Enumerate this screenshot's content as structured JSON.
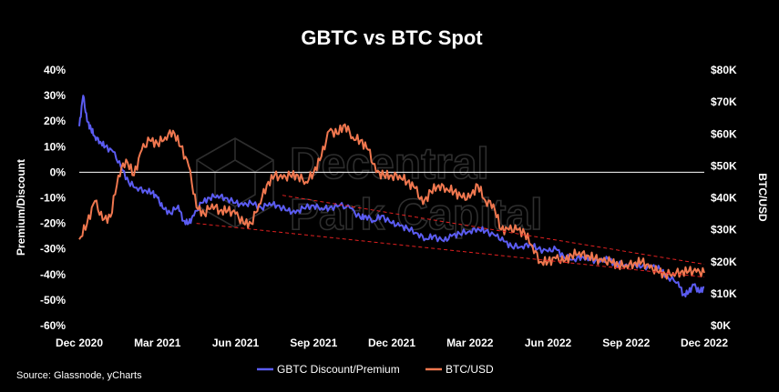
{
  "chart_data": {
    "type": "line",
    "title": "GBTC vs BTC Spot",
    "ylabel_left": "Premium/Discount",
    "ylabel_right": "BTC/USD",
    "source": "Source: Glassnode, yCharts",
    "watermark": [
      "Decentral",
      "Park Capital"
    ],
    "x_ticks": [
      "Dec 2020",
      "Mar 2021",
      "Jun 2021",
      "Sep 2021",
      "Dec 2021",
      "Mar 2022",
      "Jun 2022",
      "Sep 2022",
      "Dec 2022"
    ],
    "y_left_ticks": [
      "40%",
      "30%",
      "20%",
      "10%",
      "0%",
      "-10%",
      "-20%",
      "-30%",
      "-40%",
      "-50%",
      "-60%"
    ],
    "y_right_ticks": [
      "$80K",
      "$70K",
      "$60K",
      "$50K",
      "$40K",
      "$30K",
      "$20K",
      "$10K",
      "$0K"
    ],
    "y_left_range": [
      -60,
      40
    ],
    "y_right_range": [
      0,
      80000
    ],
    "x_range_months": [
      0,
      24
    ],
    "zero_line": true,
    "legend_position": "bottom-center",
    "series": [
      {
        "name": "GBTC Discount/Premium",
        "axis": "left",
        "color": "#5b5cf2",
        "x": [
          0,
          0.15,
          0.3,
          0.45,
          0.6,
          0.8,
          1.0,
          1.3,
          1.6,
          1.9,
          2.2,
          2.5,
          2.8,
          3.0,
          3.2,
          3.5,
          3.8,
          4.0,
          4.2,
          4.4,
          4.7,
          5.0,
          5.3,
          5.6,
          6.0,
          6.3,
          6.6,
          7.0,
          7.3,
          7.6,
          8.0,
          8.3,
          8.6,
          9.0,
          9.3,
          9.6,
          10.0,
          10.4,
          10.8,
          11.0,
          11.3,
          11.6,
          12.0,
          12.3,
          12.6,
          13.0,
          13.3,
          13.6,
          14.0,
          14.3,
          14.6,
          15.0,
          15.3,
          15.6,
          16.0,
          16.3,
          16.6,
          17.0,
          17.3,
          17.6,
          18.0,
          18.3,
          18.6,
          19.0,
          19.3,
          19.6,
          20.0,
          20.3,
          20.6,
          21.0,
          21.3,
          21.6,
          22.0,
          22.3,
          22.6,
          23.0,
          23.2,
          23.4,
          23.6,
          23.8,
          24.0
        ],
        "values": [
          18,
          30,
          20,
          17,
          14,
          12,
          10,
          8,
          2,
          -4,
          -6,
          -7,
          -8,
          -10,
          -14,
          -16,
          -13,
          -19,
          -20,
          -17,
          -12,
          -10,
          -9,
          -10,
          -12,
          -13,
          -12,
          -14,
          -12,
          -13,
          -15,
          -16,
          -14,
          -13,
          -14,
          -14,
          -13,
          -14,
          -18,
          -17,
          -19,
          -17,
          -20,
          -21,
          -22,
          -24,
          -26,
          -25,
          -27,
          -25,
          -24,
          -23,
          -22,
          -23,
          -25,
          -27,
          -29,
          -29,
          -28,
          -30,
          -31,
          -30,
          -33,
          -34,
          -33,
          -34,
          -35,
          -34,
          -36,
          -36,
          -36,
          -37,
          -37,
          -38,
          -41,
          -43,
          -48,
          -47,
          -44,
          -47,
          -45
        ]
      },
      {
        "name": "BTC/USD",
        "axis": "right",
        "color": "#f0774f",
        "x": [
          0,
          0.3,
          0.6,
          0.9,
          1.2,
          1.5,
          1.8,
          2.1,
          2.4,
          2.7,
          3.0,
          3.3,
          3.6,
          3.9,
          4.2,
          4.5,
          4.8,
          5.1,
          5.4,
          5.7,
          6.0,
          6.3,
          6.6,
          6.9,
          7.2,
          7.5,
          7.8,
          8.1,
          8.4,
          8.7,
          9.0,
          9.3,
          9.6,
          9.9,
          10.2,
          10.5,
          10.8,
          11.1,
          11.4,
          11.7,
          12.0,
          12.3,
          12.6,
          12.9,
          13.2,
          13.5,
          13.8,
          14.1,
          14.4,
          14.7,
          15.0,
          15.3,
          15.6,
          15.9,
          16.2,
          16.5,
          16.8,
          17.1,
          17.4,
          17.7,
          18.0,
          18.3,
          18.6,
          18.9,
          19.2,
          19.5,
          19.8,
          20.1,
          20.4,
          20.7,
          21.0,
          21.3,
          21.6,
          21.9,
          22.2,
          22.5,
          22.8,
          23.1,
          23.4,
          23.7,
          24.0
        ],
        "values": [
          27000,
          32000,
          39000,
          33000,
          34000,
          47000,
          52000,
          47000,
          55000,
          58000,
          57000,
          59000,
          61000,
          56000,
          50000,
          37000,
          35000,
          38000,
          36000,
          36000,
          35000,
          32000,
          32000,
          38000,
          44000,
          47000,
          46000,
          47000,
          47000,
          45000,
          48000,
          53000,
          61000,
          60000,
          63000,
          59000,
          58000,
          55000,
          48000,
          47000,
          47000,
          47000,
          45000,
          43000,
          38000,
          42000,
          44000,
          43000,
          42000,
          40000,
          40000,
          44000,
          39000,
          38000,
          30000,
          30000,
          30000,
          29000,
          25000,
          20000,
          20000,
          21000,
          20000,
          22000,
          23000,
          22000,
          21000,
          20000,
          20000,
          19000,
          19000,
          19500,
          20000,
          18000,
          17000,
          16000,
          16500,
          16800,
          17000,
          16800,
          16500
        ]
      }
    ],
    "trendlines": [
      {
        "name": "",
        "color": "#e02020",
        "style": "dashed",
        "axis": "left",
        "x": [
          4.5,
          24.0
        ],
        "values": [
          -20,
          -41
        ]
      },
      {
        "name": "",
        "color": "#e02020",
        "style": "dashed",
        "axis": "left",
        "x": [
          7.8,
          24.0
        ],
        "values": [
          -9,
          -36
        ]
      }
    ]
  }
}
